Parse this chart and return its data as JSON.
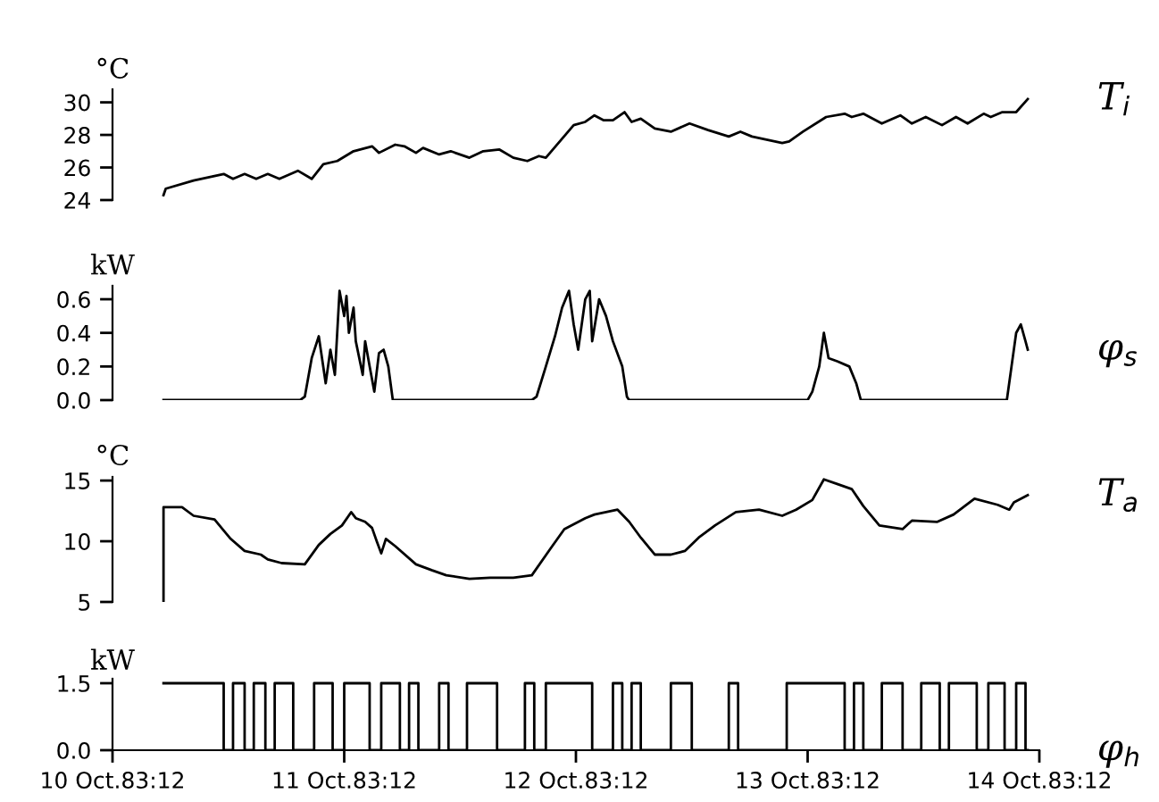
{
  "chart_data": [
    {
      "type": "line",
      "ylabel": "°C",
      "xlim": [
        "1983-10-10T12:00",
        "1983-10-14T12:00"
      ],
      "ylim": [
        24,
        30.8
      ],
      "yticks": [
        24,
        26,
        28,
        30
      ],
      "tick_labels": "y",
      "grid": false,
      "legend": false,
      "series": [
        {
          "name": "T$_{i}$",
          "color": "#000000",
          "x": [
            "1983-10-10T17:17",
            "1983-10-10T17:31",
            "1983-10-10T20:24",
            "1983-10-10T23:31",
            "1983-10-11T00:29",
            "1983-10-11T01:41",
            "1983-10-11T02:53",
            "1983-10-11T04:05",
            "1983-10-11T05:17",
            "1983-10-11T07:12",
            "1983-10-11T08:38",
            "1983-10-11T09:50",
            "1983-10-11T11:17",
            "1983-10-11T12:58",
            "1983-10-11T14:53",
            "1983-10-11T15:36",
            "1983-10-11T17:17",
            "1983-10-11T18:14",
            "1983-10-11T19:26",
            "1983-10-11T20:10",
            "1983-10-11T21:50",
            "1983-10-11T23:02",
            "1983-10-12T00:58",
            "1983-10-12T02:24",
            "1983-10-12T04:05",
            "1983-10-12T05:31",
            "1983-10-12T06:58",
            "1983-10-12T08:10",
            "1983-10-12T08:53",
            "1983-10-12T11:46",
            "1983-10-12T12:58",
            "1983-10-12T13:55",
            "1983-10-12T14:53",
            "1983-10-12T15:50",
            "1983-10-12T17:02",
            "1983-10-12T17:46",
            "1983-10-12T18:43",
            "1983-10-12T20:10",
            "1983-10-12T21:50",
            "1983-10-12T23:46",
            "1983-10-13T01:41",
            "1983-10-13T03:50",
            "1983-10-13T05:02",
            "1983-10-13T06:14",
            "1983-10-13T09:22",
            "1983-10-13T10:05",
            "1983-10-13T11:31",
            "1983-10-13T13:55",
            "1983-10-13T15:50",
            "1983-10-13T16:34",
            "1983-10-13T17:46",
            "1983-10-13T19:41",
            "1983-10-13T21:36",
            "1983-10-13T22:48",
            "1983-10-14T00:14",
            "1983-10-14T01:55",
            "1983-10-14T03:22",
            "1983-10-14T04:34",
            "1983-10-14T06:14",
            "1983-10-14T06:58",
            "1983-10-14T08:10",
            "1983-10-14T09:36",
            "1983-10-14T10:48"
          ],
          "values": [
            24.3,
            24.7,
            25.2,
            25.6,
            25.3,
            25.6,
            25.3,
            25.6,
            25.3,
            25.8,
            25.3,
            26.2,
            26.4,
            27.0,
            27.3,
            26.9,
            27.4,
            27.3,
            26.9,
            27.2,
            26.8,
            27.0,
            26.6,
            27.0,
            27.1,
            26.6,
            26.4,
            26.7,
            26.6,
            28.6,
            28.8,
            29.2,
            28.9,
            28.9,
            29.4,
            28.8,
            29.0,
            28.4,
            28.2,
            28.7,
            28.3,
            27.9,
            28.2,
            27.9,
            27.5,
            27.6,
            28.2,
            29.1,
            29.3,
            29.1,
            29.3,
            28.7,
            29.2,
            28.7,
            29.1,
            28.6,
            29.1,
            28.7,
            29.3,
            29.1,
            29.4,
            29.4,
            30.2
          ]
        }
      ]
    },
    {
      "type": "line",
      "ylabel": "kW",
      "xlim": [
        "1983-10-10T12:00",
        "1983-10-14T12:00"
      ],
      "ylim": [
        0,
        0.68
      ],
      "yticks": [
        {
          "value": 0,
          "label": "0.0"
        },
        0.2,
        0.4,
        0.6
      ],
      "tick_labels": "y",
      "grid": false,
      "legend": false,
      "series": [
        {
          "name": "φ$_{s}$",
          "color": "#000000",
          "x": [
            "1983-10-10T17:17",
            "1983-10-11T07:26",
            "1983-10-11T07:55",
            "1983-10-11T08:38",
            "1983-10-11T09:22",
            "1983-10-11T10:05",
            "1983-10-11T10:34",
            "1983-10-11T11:02",
            "1983-10-11T11:31",
            "1983-10-11T12:00",
            "1983-10-11T12:14",
            "1983-10-11T12:29",
            "1983-10-11T12:58",
            "1983-10-11T13:12",
            "1983-10-11T13:55",
            "1983-10-11T14:10",
            "1983-10-11T14:38",
            "1983-10-11T15:07",
            "1983-10-11T15:36",
            "1983-10-11T16:05",
            "1983-10-11T16:34",
            "1983-10-11T17:02",
            "1983-10-12T07:26",
            "1983-10-12T07:55",
            "1983-10-12T08:53",
            "1983-10-12T09:50",
            "1983-10-12T10:34",
            "1983-10-12T11:17",
            "1983-10-12T11:46",
            "1983-10-12T12:14",
            "1983-10-12T12:58",
            "1983-10-12T13:26",
            "1983-10-12T13:41",
            "1983-10-12T14:24",
            "1983-10-12T15:07",
            "1983-10-12T15:50",
            "1983-10-12T16:48",
            "1983-10-12T17:17",
            "1983-10-12T17:31",
            "1983-10-13T12:00",
            "1983-10-13T12:29",
            "1983-10-13T13:12",
            "1983-10-13T13:41",
            "1983-10-13T14:10",
            "1983-10-13T15:07",
            "1983-10-13T16:19",
            "1983-10-13T17:02",
            "1983-10-13T17:31",
            "1983-10-14T08:38",
            "1983-10-14T09:07",
            "1983-10-14T09:36",
            "1983-10-14T10:05",
            "1983-10-14T10:34",
            "1983-10-14T10:48"
          ],
          "values": [
            0,
            0,
            0.02,
            0.25,
            0.38,
            0.1,
            0.3,
            0.15,
            0.65,
            0.5,
            0.62,
            0.4,
            0.55,
            0.35,
            0.15,
            0.35,
            0.2,
            0.05,
            0.28,
            0.3,
            0.2,
            0,
            0,
            0.02,
            0.2,
            0.38,
            0.55,
            0.65,
            0.45,
            0.3,
            0.6,
            0.65,
            0.35,
            0.6,
            0.5,
            0.35,
            0.2,
            0.02,
            0,
            0,
            0.05,
            0.2,
            0.4,
            0.25,
            0.23,
            0.2,
            0.1,
            0,
            0,
            0.2,
            0.4,
            0.45,
            0.35,
            0.3
          ]
        }
      ]
    },
    {
      "type": "line",
      "ylabel": "°C",
      "xlim": [
        "1983-10-10T12:00",
        "1983-10-14T12:00"
      ],
      "ylim": [
        5,
        15.3
      ],
      "yticks": [
        5,
        10,
        15
      ],
      "tick_labels": "y",
      "grid": false,
      "legend": false,
      "series": [
        {
          "name": "T$_{a}$",
          "color": "#000000",
          "x": [
            "1983-10-10T17:17",
            "1983-10-10T17:17",
            "1983-10-10T19:12",
            "1983-10-10T20:24",
            "1983-10-10T22:34",
            "1983-10-11T00:14",
            "1983-10-11T01:41",
            "1983-10-11T03:22",
            "1983-10-11T04:05",
            "1983-10-11T05:31",
            "1983-10-11T07:55",
            "1983-10-11T09:22",
            "1983-10-11T10:34",
            "1983-10-11T11:46",
            "1983-10-11T12:43",
            "1983-10-11T13:12",
            "1983-10-11T14:10",
            "1983-10-11T14:53",
            "1983-10-11T15:22",
            "1983-10-11T15:50",
            "1983-10-11T16:19",
            "1983-10-11T17:17",
            "1983-10-11T19:26",
            "1983-10-11T21:07",
            "1983-10-11T22:34",
            "1983-10-12T00:58",
            "1983-10-12T03:07",
            "1983-10-12T05:31",
            "1983-10-12T07:26",
            "1983-10-12T09:22",
            "1983-10-12T10:48",
            "1983-10-12T12:58",
            "1983-10-12T13:55",
            "1983-10-12T16:19",
            "1983-10-12T17:31",
            "1983-10-12T18:43",
            "1983-10-12T20:10",
            "1983-10-12T21:50",
            "1983-10-12T23:17",
            "1983-10-13T00:43",
            "1983-10-13T02:24",
            "1983-10-13T04:34",
            "1983-10-13T06:58",
            "1983-10-13T09:22",
            "1983-10-13T10:48",
            "1983-10-13T12:29",
            "1983-10-13T13:41",
            "1983-10-13T15:07",
            "1983-10-13T16:34",
            "1983-10-13T17:46",
            "1983-10-13T19:26",
            "1983-10-13T21:50",
            "1983-10-13T22:48",
            "1983-10-14T01:26",
            "1983-10-14T03:07",
            "1983-10-14T05:17",
            "1983-10-14T07:41",
            "1983-10-14T08:53",
            "1983-10-14T09:22",
            "1983-10-14T10:48"
          ],
          "values": [
            5,
            12.8,
            12.8,
            12.1,
            11.8,
            10.2,
            9.2,
            8.9,
            8.5,
            8.2,
            8.1,
            9.7,
            10.6,
            11.3,
            12.4,
            11.9,
            11.6,
            11.1,
            10.0,
            9.0,
            10.2,
            9.6,
            8.1,
            7.6,
            7.2,
            6.9,
            7.0,
            7.0,
            7.2,
            9.4,
            11.0,
            11.9,
            12.2,
            12.6,
            11.6,
            10.3,
            8.9,
            8.9,
            9.2,
            10.3,
            11.3,
            12.4,
            12.6,
            12.1,
            12.6,
            13.4,
            15.1,
            14.7,
            14.3,
            12.9,
            11.3,
            11.0,
            11.7,
            11.6,
            12.2,
            13.5,
            13.0,
            12.6,
            13.2,
            13.8
          ]
        }
      ]
    },
    {
      "type": "step",
      "ylabel": "kW",
      "xlim": [
        "1983-10-10T12:00",
        "1983-10-14T12:00"
      ],
      "ylim": [
        0,
        1.6
      ],
      "yticks": [
        {
          "value": 0,
          "label": "0.0"
        },
        1.5
      ],
      "grid": false,
      "legend": false,
      "xticks": [
        {
          "value": "1983-10-10T12:00",
          "label": "10 Oct.83:12"
        },
        {
          "value": "1983-10-11T12:00",
          "label": "11 Oct.83:12"
        },
        {
          "value": "1983-10-12T12:00",
          "label": "12 Oct.83:12"
        },
        {
          "value": "1983-10-13T12:00",
          "label": "13 Oct.83:12"
        },
        {
          "value": "1983-10-14T12:00",
          "label": "14 Oct.83:12"
        }
      ],
      "series": [
        {
          "name": "φ$_{h}$",
          "color": "#000000",
          "x": [
            "1983-10-10T17:17",
            "1983-10-10T23:31",
            "1983-10-11T00:29",
            "1983-10-11T01:41",
            "1983-10-11T02:38",
            "1983-10-11T03:50",
            "1983-10-11T04:48",
            "1983-10-11T06:43",
            "1983-10-11T08:53",
            "1983-10-11T10:48",
            "1983-10-11T12:00",
            "1983-10-11T14:38",
            "1983-10-11T15:50",
            "1983-10-11T17:46",
            "1983-10-11T18:43",
            "1983-10-11T19:41",
            "1983-10-11T21:50",
            "1983-10-11T22:48",
            "1983-10-12T00:43",
            "1983-10-12T03:50",
            "1983-10-12T06:43",
            "1983-10-12T07:41",
            "1983-10-12T08:53",
            "1983-10-12T13:41",
            "1983-10-12T15:50",
            "1983-10-12T16:48",
            "1983-10-12T17:46",
            "1983-10-12T18:43",
            "1983-10-12T21:50",
            "1983-10-13T00:00",
            "1983-10-13T03:50",
            "1983-10-13T04:48",
            "1983-10-13T09:50",
            "1983-10-13T15:50",
            "1983-10-13T16:48",
            "1983-10-13T17:46",
            "1983-10-13T19:41",
            "1983-10-13T21:50",
            "1983-10-13T23:46",
            "1983-10-14T01:41",
            "1983-10-14T02:38",
            "1983-10-14T05:31",
            "1983-10-14T06:43",
            "1983-10-14T08:24",
            "1983-10-14T09:36",
            "1983-10-14T10:34",
            "1983-10-14T10:48"
          ],
          "values": [
            1.5,
            0,
            1.5,
            0,
            1.5,
            0,
            1.5,
            0,
            1.5,
            0,
            1.5,
            0,
            1.5,
            0,
            1.5,
            0,
            1.5,
            0,
            1.5,
            0,
            1.5,
            0,
            1.5,
            0,
            1.5,
            0,
            1.5,
            0,
            1.5,
            0,
            1.5,
            0,
            1.5,
            0,
            1.5,
            0,
            1.5,
            0,
            1.5,
            0,
            1.5,
            0,
            1.5,
            0,
            1.5,
            0,
            0
          ]
        }
      ]
    }
  ]
}
